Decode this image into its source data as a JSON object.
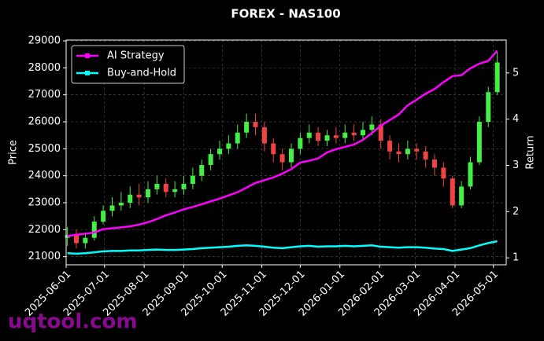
{
  "chart_data": {
    "type": "candlestick",
    "title": "FOREX - NAS100",
    "x": [
      "2025-06-02",
      "2025-06-09",
      "2025-06-16",
      "2025-06-23",
      "2025-06-30",
      "2025-07-07",
      "2025-07-14",
      "2025-07-21",
      "2025-07-28",
      "2025-08-04",
      "2025-08-11",
      "2025-08-18",
      "2025-08-25",
      "2025-09-01",
      "2025-09-08",
      "2025-09-15",
      "2025-09-22",
      "2025-09-29",
      "2025-10-06",
      "2025-10-13",
      "2025-10-20",
      "2025-10-27",
      "2025-11-03",
      "2025-11-10",
      "2025-11-17",
      "2025-11-24",
      "2025-12-01",
      "2025-12-08",
      "2025-12-15",
      "2025-12-22",
      "2025-12-29",
      "2026-01-05",
      "2026-01-12",
      "2026-01-19",
      "2026-01-26",
      "2026-02-02",
      "2026-02-09",
      "2026-02-16",
      "2026-02-23",
      "2026-03-02",
      "2026-03-09",
      "2026-03-16",
      "2026-03-23",
      "2026-03-30",
      "2026-04-06",
      "2026-04-13",
      "2026-04-20",
      "2026-04-27",
      "2026-05-04"
    ],
    "open": [
      21700,
      21800,
      21500,
      21700,
      22300,
      22700,
      22900,
      23000,
      23300,
      23200,
      23500,
      23700,
      23400,
      23500,
      23700,
      24000,
      24400,
      24800,
      25000,
      25200,
      25600,
      26000,
      25800,
      25200,
      24800,
      24500,
      25000,
      25400,
      25600,
      25300,
      25500,
      25400,
      25600,
      25500,
      25700,
      25900,
      25300,
      24900,
      24800,
      25000,
      24900,
      24600,
      24300,
      23900,
      22900,
      23600,
      24500,
      26000,
      27100
    ],
    "high": [
      22100,
      22000,
      21900,
      22500,
      22900,
      23200,
      23400,
      23600,
      23700,
      23800,
      24000,
      23900,
      23800,
      24000,
      24300,
      24600,
      25000,
      25300,
      25500,
      25900,
      26300,
      26300,
      26000,
      25400,
      25000,
      25200,
      25600,
      25900,
      25800,
      25700,
      25800,
      25900,
      25900,
      26000,
      26200,
      26100,
      25500,
      25200,
      25300,
      25200,
      25100,
      24800,
      24500,
      24000,
      23800,
      24700,
      26200,
      27300,
      28600
    ],
    "low": [
      21400,
      21300,
      21300,
      21600,
      22200,
      22500,
      22700,
      22800,
      22900,
      23000,
      23300,
      23200,
      23200,
      23300,
      23500,
      23800,
      24200,
      24600,
      24800,
      25000,
      25400,
      25500,
      24900,
      24500,
      24200,
      24300,
      24800,
      25200,
      25100,
      25100,
      25200,
      25200,
      25300,
      25300,
      25500,
      25000,
      24600,
      24500,
      24600,
      24600,
      24300,
      24000,
      23600,
      22800,
      22800,
      23500,
      24400,
      25800,
      27000
    ],
    "close": [
      21800,
      21500,
      21700,
      22300,
      22700,
      22900,
      23000,
      23300,
      23200,
      23500,
      23700,
      23400,
      23500,
      23700,
      24000,
      24400,
      24800,
      25000,
      25200,
      25600,
      26000,
      25800,
      25200,
      24800,
      24500,
      25000,
      25400,
      25600,
      25300,
      25500,
      25400,
      25600,
      25500,
      25700,
      25900,
      25300,
      24900,
      24800,
      25000,
      24900,
      24600,
      24300,
      23900,
      22900,
      23600,
      24500,
      26000,
      27100,
      28200
    ],
    "up_color": "#44ee44",
    "down_color": "#ee4444",
    "series": [
      {
        "name": "AI Strategy",
        "color": "#ff00ff",
        "axis": "y2",
        "values": [
          1.47,
          1.5,
          1.52,
          1.55,
          1.62,
          1.64,
          1.66,
          1.68,
          1.72,
          1.77,
          1.84,
          1.92,
          1.98,
          2.05,
          2.1,
          2.16,
          2.22,
          2.28,
          2.35,
          2.42,
          2.52,
          2.62,
          2.68,
          2.74,
          2.82,
          2.92,
          3.06,
          3.1,
          3.15,
          3.28,
          3.35,
          3.4,
          3.45,
          3.55,
          3.7,
          3.86,
          3.98,
          4.1,
          4.3,
          4.42,
          4.55,
          4.65,
          4.8,
          4.93,
          4.95,
          5.1,
          5.2,
          5.26,
          5.48
        ]
      },
      {
        "name": "Buy-and-Hold",
        "color": "#00ffff",
        "axis": "y2",
        "values": [
          1.1,
          1.09,
          1.1,
          1.12,
          1.14,
          1.15,
          1.15,
          1.16,
          1.16,
          1.17,
          1.18,
          1.17,
          1.17,
          1.18,
          1.19,
          1.21,
          1.22,
          1.23,
          1.24,
          1.26,
          1.27,
          1.26,
          1.24,
          1.22,
          1.21,
          1.23,
          1.25,
          1.26,
          1.24,
          1.25,
          1.25,
          1.26,
          1.25,
          1.26,
          1.27,
          1.24,
          1.23,
          1.22,
          1.23,
          1.23,
          1.22,
          1.2,
          1.19,
          1.15,
          1.18,
          1.21,
          1.27,
          1.32,
          1.36
        ]
      }
    ],
    "xlim": [
      "2025-06-01",
      "2026-05-11"
    ],
    "xticks": [
      "2025-06-01",
      "2025-07-01",
      "2025-08-01",
      "2025-09-01",
      "2025-10-01",
      "2025-11-01",
      "2025-12-01",
      "2026-01-01",
      "2026-02-01",
      "2026-03-01",
      "2026-04-01",
      "2026-05-01"
    ],
    "ylim": [
      20700,
      29030
    ],
    "yticks": [
      21000,
      22000,
      23000,
      24000,
      25000,
      26000,
      27000,
      28000,
      29000
    ],
    "y2lim": [
      0.85,
      5.71
    ],
    "y2ticks": [
      1,
      2,
      3,
      4,
      5
    ],
    "ylabel": "Price",
    "y2label": "Return",
    "grid": true,
    "legend": "upper left",
    "watermark": "uqtool.com"
  }
}
